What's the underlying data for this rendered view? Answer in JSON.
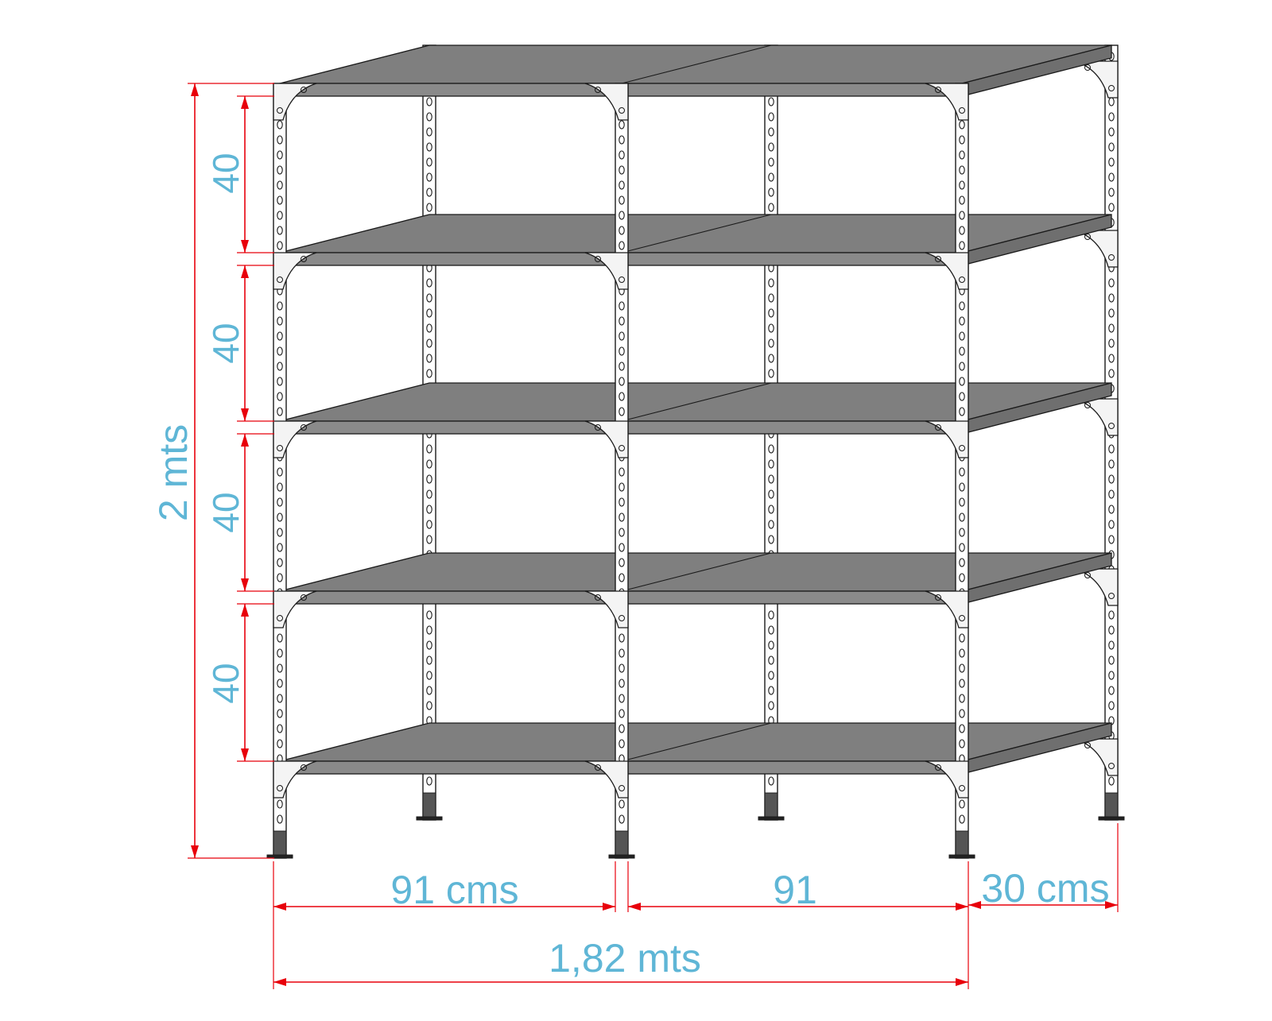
{
  "colors": {
    "background": "#ffffff",
    "shelf": "#7f7f7f",
    "shelf_front": "#8a8a8a",
    "outline": "#1a1a1a",
    "post": "#ffffff",
    "foot": "#555555",
    "dimension_line": "#e8000b",
    "dimension_text": "#5fb6d6"
  },
  "diagram": {
    "levels": 5,
    "bays": 2,
    "labels": {
      "total_height": "2 mts",
      "shelf_spacing": [
        "40",
        "40",
        "40",
        "40"
      ],
      "bay_width_left": "91 cms",
      "bay_width_right": "91",
      "depth": "30 cms",
      "total_width": "1,82 mts"
    }
  }
}
